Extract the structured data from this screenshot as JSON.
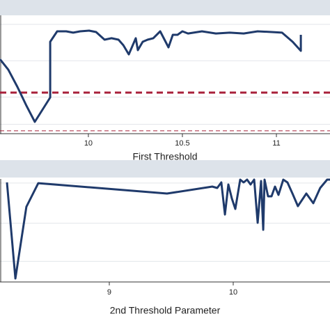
{
  "chart_data": [
    {
      "type": "line",
      "x_label": "First Threshold",
      "xlim": [
        9.53,
        11.285
      ],
      "xticks": [
        10,
        10.5,
        11
      ],
      "ylim": [
        -4.3,
        100
      ],
      "yticks": [
        4,
        28,
        60,
        92
      ],
      "grid": true,
      "hlines": [
        {
          "value": 31.9,
          "color": "#a8203a",
          "width": 3
        },
        {
          "value": -1.8,
          "color": "#a8203a",
          "width": 1
        }
      ],
      "series": [
        {
          "color": "#1f3a6b",
          "x": [
            9.53,
            9.574,
            9.623,
            9.671,
            9.715,
            9.797,
            9.797,
            9.834,
            9.882,
            9.919,
            9.956,
            10.004,
            10.041,
            10.086,
            10.123,
            10.16,
            10.186,
            10.215,
            10.252,
            10.263,
            10.289,
            10.315,
            10.345,
            10.382,
            10.426,
            10.449,
            10.474,
            10.5,
            10.53,
            10.604,
            10.678,
            10.752,
            10.826,
            10.9,
            10.974,
            11.03,
            11.086,
            11.13,
            11.13
          ],
          "values": [
            61.3,
            52.1,
            36.8,
            20.2,
            6.1,
            27.6,
            76.7,
            85.9,
            85.9,
            84.7,
            85.9,
            86.5,
            85.3,
            78.5,
            79.8,
            78.5,
            73.6,
            65.6,
            79.8,
            69.3,
            76.7,
            78.5,
            79.8,
            85.9,
            71.8,
            82.8,
            82.8,
            85.9,
            84.0,
            85.9,
            84.0,
            84.7,
            84.0,
            85.9,
            85.3,
            84.7,
            76.7,
            68.7,
            82.8
          ]
        }
      ]
    },
    {
      "type": "line",
      "x_label": "2nd Threshold Parameter",
      "xlim": [
        8.118,
        10.781
      ],
      "xticks": [
        9,
        10
      ],
      "ylim": [
        0,
        100
      ],
      "yticks": [
        20,
        57,
        96
      ],
      "grid": true,
      "hlines": [],
      "series": [
        {
          "color": "#1f3a6b",
          "x": [
            8.174,
            8.242,
            8.331,
            8.427,
            9.466,
            9.831,
            9.871,
            9.904,
            9.933,
            9.961,
            9.989,
            10.017,
            10.056,
            10.084,
            10.112,
            10.14,
            10.169,
            10.197,
            10.225,
            10.242,
            10.253,
            10.281,
            10.309,
            10.337,
            10.365,
            10.404,
            10.438,
            10.478,
            10.522,
            10.59,
            10.646,
            10.702,
            10.758,
            10.781
          ],
          "values": [
            96.6,
            3.4,
            73,
            95.9,
            85.8,
            92.6,
            91.2,
            96.6,
            65.5,
            94.6,
            81.1,
            70.9,
            99.3,
            96.6,
            99.3,
            94.6,
            99.3,
            57.4,
            98,
            50.7,
            99.3,
            83.1,
            83.1,
            92.6,
            84.5,
            99.3,
            96.6,
            85.8,
            73.6,
            85.8,
            76.4,
            91.2,
            99.3,
            99.3
          ]
        }
      ]
    }
  ]
}
